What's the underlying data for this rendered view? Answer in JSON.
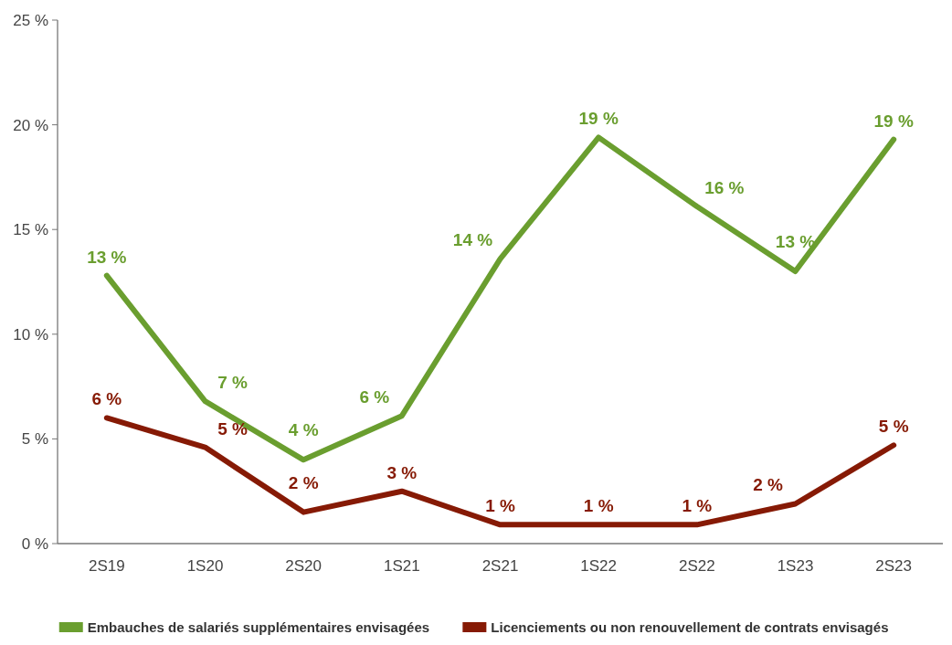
{
  "chart_data": {
    "type": "line",
    "categories": [
      "2S19",
      "1S20",
      "2S20",
      "1S21",
      "2S21",
      "1S22",
      "2S22",
      "1S23",
      "2S23"
    ],
    "series": [
      {
        "name": "Embauches de salariés supplémentaires envisagées",
        "color": "#6a9e2f",
        "values": [
          12.8,
          6.8,
          4.0,
          6.1,
          13.6,
          19.4,
          16.1,
          13.0,
          19.3
        ],
        "value_labels": [
          "13 %",
          "7 %",
          "4 %",
          "6 %",
          "14 %",
          "19 %",
          "16 %",
          "13 %",
          "19 %"
        ]
      },
      {
        "name": "Licenciements ou non renouvellement de contrats envisagés",
        "color": "#861a05",
        "values": [
          6.0,
          4.6,
          1.5,
          2.5,
          0.9,
          0.9,
          0.9,
          1.9,
          4.7
        ],
        "value_labels": [
          "6 %",
          "5 %",
          "2 %",
          "3 %",
          "1 %",
          "1 %",
          "1 %",
          "2 %",
          "5 %"
        ]
      }
    ],
    "ylim": [
      0,
      25
    ],
    "yticks": [
      {
        "value": 0,
        "label": "0 %"
      },
      {
        "value": 5,
        "label": "5 %"
      },
      {
        "value": 10,
        "label": "10 %"
      },
      {
        "value": 15,
        "label": "15 %"
      },
      {
        "value": 20,
        "label": "20 %"
      },
      {
        "value": 25,
        "label": "25 %"
      }
    ],
    "grid": false,
    "legend": "bottom",
    "marker": "none",
    "line_style": "solid"
  }
}
